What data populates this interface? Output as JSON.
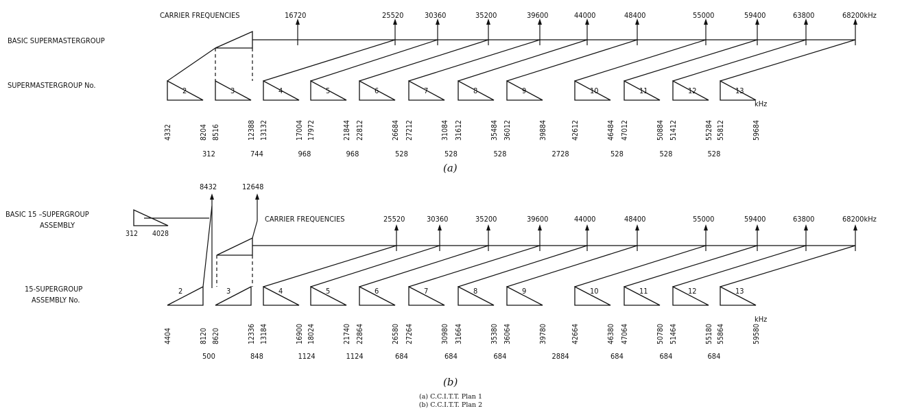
{
  "plan1": {
    "carrier_label": "CARRIER FREQUENCIES",
    "carriers": [
      "16720",
      "25520",
      "30360",
      "35200",
      "39600",
      "44000",
      "48400",
      "55000",
      "59400",
      "63800",
      "68200"
    ],
    "carrier_unit": "kHz",
    "basic_label": "BASIC SUPERMASTERGROUP",
    "row_label": "SUPERMASTERGROUP No.",
    "numbers": [
      "2",
      "3",
      "4",
      "5",
      "6",
      "7",
      "8",
      "9",
      "10",
      "11",
      "12",
      "13"
    ],
    "freqs": [
      [
        "4332",
        "8204"
      ],
      [
        "8516",
        "12388"
      ],
      [
        "13132",
        "17004"
      ],
      [
        "17972",
        "21844"
      ],
      [
        "22812",
        "26684"
      ],
      [
        "27212",
        "31084"
      ],
      [
        "31612",
        "35484"
      ],
      [
        "36012",
        "39884"
      ],
      [
        "42612",
        "46484"
      ],
      [
        "47012",
        "50884"
      ],
      [
        "51412",
        "55284"
      ],
      [
        "55812",
        "59684"
      ]
    ],
    "unit": "kHz",
    "gaps": [
      "312",
      "744",
      "968",
      "968",
      "528",
      "528",
      "528",
      "2728",
      "528",
      "528",
      "528"
    ],
    "letter": "(a)"
  },
  "plan2": {
    "basic_label_1": "BASIC 15 –SUPERGROUP",
    "basic_label_2": "ASSEMBLY",
    "basic_freqs": [
      "312",
      "4028"
    ],
    "top_carriers": [
      "8432",
      "12648"
    ],
    "carrier_label": "CARRIER FREQUENCIES",
    "carriers": [
      "25520",
      "30360",
      "35200",
      "39600",
      "44000",
      "48400",
      "55000",
      "59400",
      "63800",
      "68200"
    ],
    "carrier_unit": "kHz",
    "row_label_1": "15-SUPERGROUP",
    "row_label_2": "ASSEMBLY No.",
    "numbers": [
      "2",
      "3",
      "4",
      "5",
      "6",
      "7",
      "8",
      "9",
      "10",
      "11",
      "12",
      "13"
    ],
    "freqs": [
      [
        "4404",
        "8120"
      ],
      [
        "8620",
        "12336"
      ],
      [
        "13184",
        "16900"
      ],
      [
        "18024",
        "21740"
      ],
      [
        "22864",
        "26580"
      ],
      [
        "27264",
        "30980"
      ],
      [
        "31664",
        "35380"
      ],
      [
        "36064",
        "39780"
      ],
      [
        "42664",
        "46380"
      ],
      [
        "47064",
        "50780"
      ],
      [
        "51464",
        "55180"
      ],
      [
        "55864",
        "59580"
      ]
    ],
    "unit": "kHz",
    "gaps": [
      "500",
      "848",
      "1124",
      "1124",
      "684",
      "684",
      "684",
      "2884",
      "684",
      "684",
      "684"
    ],
    "letter": "(b)"
  },
  "caption": {
    "line1": "(a) C.C.I.T.T. Plan 1",
    "line2": "(b) C.C.I.T.T. Plan 2"
  }
}
